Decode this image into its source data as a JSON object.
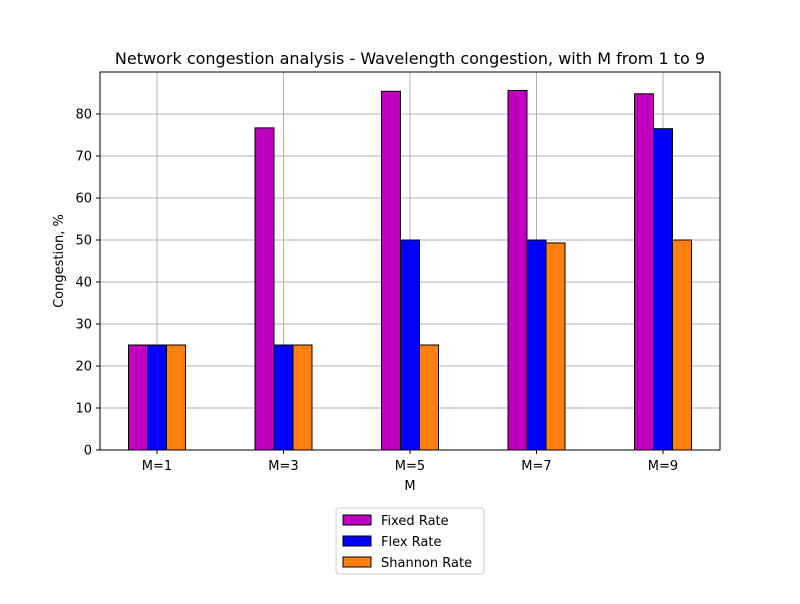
{
  "chart_data": {
    "type": "bar",
    "title": "Network congestion analysis - Wavelength congestion, with M from 1 to 9",
    "xlabel": "M",
    "ylabel": "Congestion, %",
    "categories": [
      "M=1",
      "M=3",
      "M=5",
      "M=7",
      "M=9"
    ],
    "ylim": [
      0,
      90
    ],
    "yticks": [
      0,
      10,
      20,
      30,
      40,
      50,
      60,
      70,
      80
    ],
    "grid": true,
    "legend_position": "bottom-center",
    "series": [
      {
        "name": "Fixed Rate",
        "color": "#bf00bf",
        "values": [
          25,
          76.7,
          85.4,
          85.6,
          84.8
        ]
      },
      {
        "name": "Flex Rate",
        "color": "#0000ff",
        "values": [
          25,
          25,
          50,
          50,
          76.5
        ]
      },
      {
        "name": "Shannon Rate",
        "color": "#ff7f0e",
        "values": [
          25,
          25,
          25,
          49.3,
          50
        ]
      }
    ]
  }
}
